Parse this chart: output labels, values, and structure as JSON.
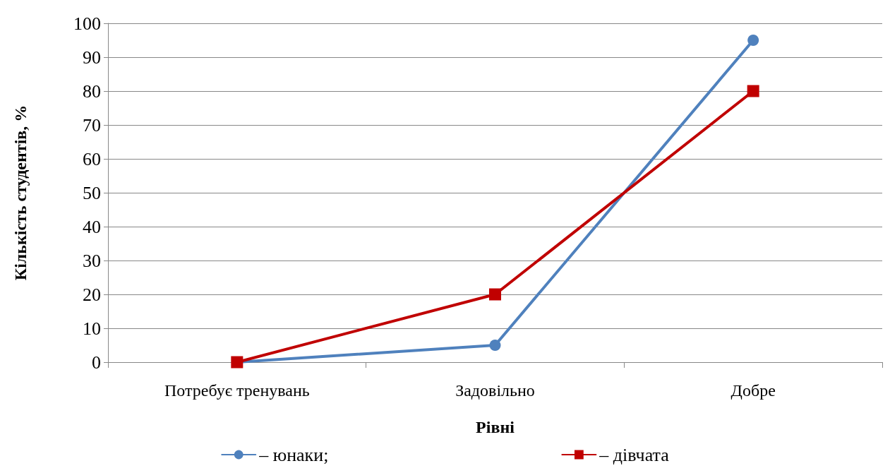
{
  "chart_data": {
    "type": "line",
    "xlabel": "Рівні",
    "ylabel": "Кількість студентів, %",
    "categories": [
      "Потребує тренувань",
      "Задовільно",
      "Добре"
    ],
    "series": [
      {
        "name": "– юнаки;",
        "color": "#4f81bd",
        "marker": "circle",
        "values": [
          0,
          5,
          95
        ]
      },
      {
        "name": "– дівчата",
        "color": "#c00000",
        "marker": "square",
        "values": [
          0,
          20,
          80
        ]
      }
    ],
    "ylim": [
      0,
      100
    ],
    "yticks": [
      0,
      10,
      20,
      30,
      40,
      50,
      60,
      70,
      80,
      90,
      100
    ],
    "grid": "y",
    "legend": "bottom",
    "line_style": "solid"
  }
}
